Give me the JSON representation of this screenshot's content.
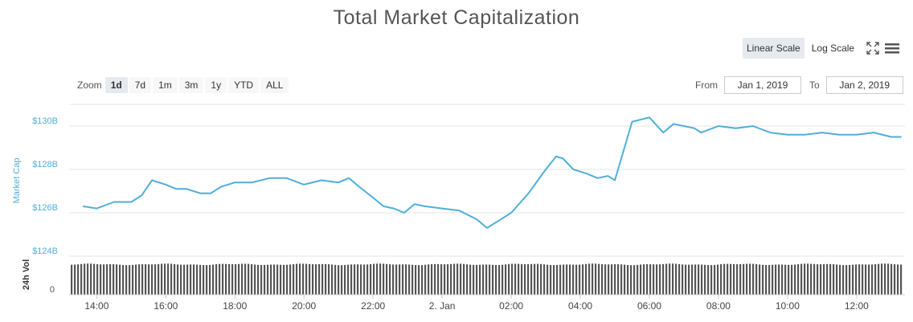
{
  "title": "Total Market Capitalization",
  "scale_buttons": {
    "linear": "Linear Scale",
    "log": "Log Scale"
  },
  "zoom": {
    "label": "Zoom",
    "options": [
      "1d",
      "7d",
      "1m",
      "3m",
      "1y",
      "YTD",
      "ALL"
    ],
    "selected": "1d"
  },
  "range": {
    "from_label": "From",
    "from_value": "Jan 1, 2019",
    "to_label": "To",
    "to_value": "Jan 2, 2019"
  },
  "colors": {
    "line": "#51aed9",
    "volume": "#555555",
    "grid": "#e6e6e6"
  },
  "icons": {
    "fullscreen": "fullscreen-icon",
    "menu": "hamburger-menu-icon"
  },
  "chart_data": {
    "type": "line",
    "title": "Total Market Capitalization",
    "ylabel": "Market Cap",
    "ylim": [
      124,
      131
    ],
    "y_unit": "billion USD",
    "y_ticks": [
      "$124B",
      "$126B",
      "$128B",
      "$130B"
    ],
    "x_ticks": [
      "14:00",
      "16:00",
      "18:00",
      "20:00",
      "22:00",
      "2. Jan",
      "02:00",
      "04:00",
      "06:00",
      "08:00",
      "10:00",
      "12:00"
    ],
    "grid": true,
    "series": [
      {
        "name": "Market Cap",
        "x_hours": [
          13.6,
          14.0,
          14.5,
          15.0,
          15.3,
          15.6,
          16.0,
          16.3,
          16.6,
          17.0,
          17.3,
          17.6,
          18.0,
          18.5,
          19.0,
          19.5,
          20.0,
          20.5,
          21.0,
          21.3,
          21.6,
          22.0,
          22.3,
          22.6,
          22.9,
          23.2,
          23.5,
          24.0,
          24.5,
          25.0,
          25.3,
          25.6,
          26.0,
          26.5,
          27.0,
          27.3,
          27.5,
          27.8,
          28.0,
          28.2,
          28.5,
          28.8,
          29.0,
          29.5,
          30.0,
          30.4,
          30.7,
          31.0,
          31.3,
          31.5,
          32.0,
          32.5,
          33.0,
          33.5,
          34.0,
          34.5,
          35.0,
          35.5,
          36.0,
          36.5,
          37.0,
          37.3
        ],
        "values": [
          126.3,
          126.2,
          126.5,
          126.5,
          126.8,
          127.5,
          127.3,
          127.1,
          127.1,
          126.9,
          126.9,
          127.2,
          127.4,
          127.4,
          127.6,
          127.6,
          127.3,
          127.5,
          127.4,
          127.6,
          127.2,
          126.7,
          126.3,
          126.2,
          126.0,
          126.4,
          126.3,
          126.2,
          126.1,
          125.7,
          125.3,
          125.6,
          126.0,
          126.9,
          128.0,
          128.6,
          128.5,
          128.0,
          127.9,
          127.8,
          127.6,
          127.7,
          127.5,
          130.2,
          130.4,
          129.7,
          130.1,
          130.0,
          129.9,
          129.7,
          130.0,
          129.9,
          130.0,
          129.7,
          129.6,
          129.6,
          129.7,
          129.6,
          129.6,
          129.7,
          129.5,
          129.5
        ]
      }
    ],
    "volume": {
      "name": "24h Vol",
      "y_tick": "0",
      "relative_level": 0.97
    }
  }
}
